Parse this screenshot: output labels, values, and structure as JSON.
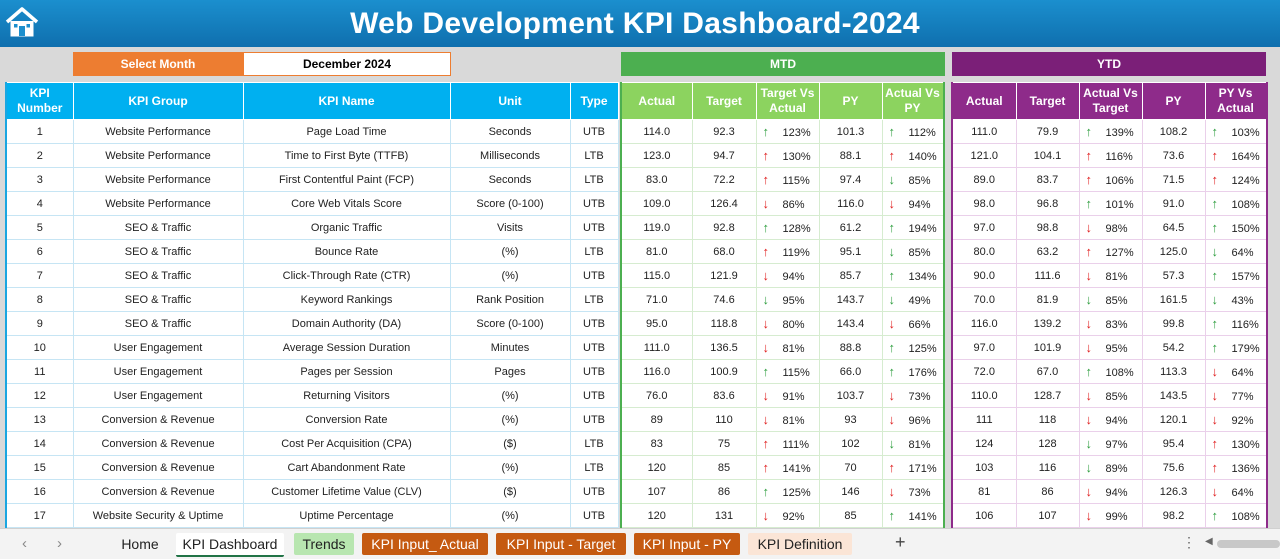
{
  "title": "Web Development KPI Dashboard-2024",
  "select_month_label": "Select Month",
  "selected_month": "December 2024",
  "sections": {
    "mtd": "MTD",
    "ytd": "YTD"
  },
  "headers": {
    "kpi_number": "KPI Number",
    "kpi_group": "KPI Group",
    "kpi_name": "KPI Name",
    "unit": "Unit",
    "type": "Type",
    "mtd_actual": "Actual",
    "mtd_target": "Target",
    "mtd_tvsa": "Target Vs Actual",
    "mtd_py": "PY",
    "mtd_avspy": "Actual Vs PY",
    "ytd_actual": "Actual",
    "ytd_target": "Target",
    "ytd_avst": "Actual Vs Target",
    "ytd_py": "PY",
    "ytd_pyvsa": "PY Vs Actual"
  },
  "colors": {
    "title_bar": "#1b8fce",
    "select_month": "#ed7d31",
    "mtd": "#4caf50",
    "mtd_header": "#8cd35f",
    "ytd": "#7b1f78",
    "up_arrow": "#2e9e3e",
    "down_arrow": "#e02020"
  },
  "rows": [
    {
      "num": "1",
      "group": "Website Performance",
      "name": "Page Load Time",
      "unit": "Seconds",
      "type": "UTB",
      "mA": "114.0",
      "mT": "92.3",
      "mC": {
        "dir": "up",
        "v": "123%"
      },
      "mPY": "101.3",
      "mP": {
        "dir": "up",
        "v": "112%"
      },
      "yA": "111.0",
      "yT": "79.9",
      "yC": {
        "dir": "up",
        "v": "139%"
      },
      "yPY": "108.2",
      "yP": {
        "dir": "up",
        "v": "103%"
      }
    },
    {
      "num": "2",
      "group": "Website Performance",
      "name": "Time to First Byte (TTFB)",
      "unit": "Milliseconds",
      "type": "LTB",
      "mA": "123.0",
      "mT": "94.7",
      "mC": {
        "dir": "up-red",
        "v": "130%"
      },
      "mPY": "88.1",
      "mP": {
        "dir": "up-red",
        "v": "140%"
      },
      "yA": "121.0",
      "yT": "104.1",
      "yC": {
        "dir": "up-red",
        "v": "116%"
      },
      "yPY": "73.6",
      "yP": {
        "dir": "up-red",
        "v": "164%"
      }
    },
    {
      "num": "3",
      "group": "Website Performance",
      "name": "First Contentful Paint (FCP)",
      "unit": "Seconds",
      "type": "LTB",
      "mA": "83.0",
      "mT": "72.2",
      "mC": {
        "dir": "up-red",
        "v": "115%"
      },
      "mPY": "97.4",
      "mP": {
        "dir": "down-green",
        "v": "85%"
      },
      "yA": "89.0",
      "yT": "83.7",
      "yC": {
        "dir": "up-red",
        "v": "106%"
      },
      "yPY": "71.5",
      "yP": {
        "dir": "up-red",
        "v": "124%"
      }
    },
    {
      "num": "4",
      "group": "Website Performance",
      "name": "Core Web Vitals Score",
      "unit": "Score (0-100)",
      "type": "UTB",
      "mA": "109.0",
      "mT": "126.4",
      "mC": {
        "dir": "down",
        "v": "86%"
      },
      "mPY": "116.0",
      "mP": {
        "dir": "down",
        "v": "94%"
      },
      "yA": "98.0",
      "yT": "96.8",
      "yC": {
        "dir": "up",
        "v": "101%"
      },
      "yPY": "91.0",
      "yP": {
        "dir": "up",
        "v": "108%"
      }
    },
    {
      "num": "5",
      "group": "SEO & Traffic",
      "name": "Organic Traffic",
      "unit": "Visits",
      "type": "UTB",
      "mA": "119.0",
      "mT": "92.8",
      "mC": {
        "dir": "up",
        "v": "128%"
      },
      "mPY": "61.2",
      "mP": {
        "dir": "up",
        "v": "194%"
      },
      "yA": "97.0",
      "yT": "98.8",
      "yC": {
        "dir": "down",
        "v": "98%"
      },
      "yPY": "64.5",
      "yP": {
        "dir": "up",
        "v": "150%"
      }
    },
    {
      "num": "6",
      "group": "SEO & Traffic",
      "name": "Bounce Rate",
      "unit": "(%)",
      "type": "LTB",
      "mA": "81.0",
      "mT": "68.0",
      "mC": {
        "dir": "up-red",
        "v": "119%"
      },
      "mPY": "95.1",
      "mP": {
        "dir": "down-green",
        "v": "85%"
      },
      "yA": "80.0",
      "yT": "63.2",
      "yC": {
        "dir": "up-red",
        "v": "127%"
      },
      "yPY": "125.0",
      "yP": {
        "dir": "down-green",
        "v": "64%"
      }
    },
    {
      "num": "7",
      "group": "SEO & Traffic",
      "name": "Click-Through Rate (CTR)",
      "unit": "(%)",
      "type": "UTB",
      "mA": "115.0",
      "mT": "121.9",
      "mC": {
        "dir": "down",
        "v": "94%"
      },
      "mPY": "85.7",
      "mP": {
        "dir": "up",
        "v": "134%"
      },
      "yA": "90.0",
      "yT": "111.6",
      "yC": {
        "dir": "down",
        "v": "81%"
      },
      "yPY": "57.3",
      "yP": {
        "dir": "up",
        "v": "157%"
      }
    },
    {
      "num": "8",
      "group": "SEO & Traffic",
      "name": "Keyword Rankings",
      "unit": "Rank Position",
      "type": "LTB",
      "mA": "71.0",
      "mT": "74.6",
      "mC": {
        "dir": "down-green",
        "v": "95%"
      },
      "mPY": "143.7",
      "mP": {
        "dir": "down-green",
        "v": "49%"
      },
      "yA": "70.0",
      "yT": "81.9",
      "yC": {
        "dir": "down-green",
        "v": "85%"
      },
      "yPY": "161.5",
      "yP": {
        "dir": "down-green",
        "v": "43%"
      }
    },
    {
      "num": "9",
      "group": "SEO & Traffic",
      "name": "Domain Authority (DA)",
      "unit": "Score (0-100)",
      "type": "UTB",
      "mA": "95.0",
      "mT": "118.8",
      "mC": {
        "dir": "down",
        "v": "80%"
      },
      "mPY": "143.4",
      "mP": {
        "dir": "down",
        "v": "66%"
      },
      "yA": "116.0",
      "yT": "139.2",
      "yC": {
        "dir": "down",
        "v": "83%"
      },
      "yPY": "99.8",
      "yP": {
        "dir": "up",
        "v": "116%"
      }
    },
    {
      "num": "10",
      "group": "User Engagement",
      "name": "Average Session Duration",
      "unit": "Minutes",
      "type": "UTB",
      "mA": "111.0",
      "mT": "136.5",
      "mC": {
        "dir": "down",
        "v": "81%"
      },
      "mPY": "88.8",
      "mP": {
        "dir": "up",
        "v": "125%"
      },
      "yA": "97.0",
      "yT": "101.9",
      "yC": {
        "dir": "down",
        "v": "95%"
      },
      "yPY": "54.2",
      "yP": {
        "dir": "up",
        "v": "179%"
      }
    },
    {
      "num": "11",
      "group": "User Engagement",
      "name": "Pages per Session",
      "unit": "Pages",
      "type": "UTB",
      "mA": "116.0",
      "mT": "100.9",
      "mC": {
        "dir": "up",
        "v": "115%"
      },
      "mPY": "66.0",
      "mP": {
        "dir": "up",
        "v": "176%"
      },
      "yA": "72.0",
      "yT": "67.0",
      "yC": {
        "dir": "up",
        "v": "108%"
      },
      "yPY": "113.3",
      "yP": {
        "dir": "down",
        "v": "64%"
      }
    },
    {
      "num": "12",
      "group": "User Engagement",
      "name": "Returning Visitors",
      "unit": "(%)",
      "type": "UTB",
      "mA": "76.0",
      "mT": "83.6",
      "mC": {
        "dir": "down",
        "v": "91%"
      },
      "mPY": "103.7",
      "mP": {
        "dir": "down",
        "v": "73%"
      },
      "yA": "110.0",
      "yT": "128.7",
      "yC": {
        "dir": "down",
        "v": "85%"
      },
      "yPY": "143.5",
      "yP": {
        "dir": "down",
        "v": "77%"
      }
    },
    {
      "num": "13",
      "group": "Conversion & Revenue",
      "name": "Conversion Rate",
      "unit": "(%)",
      "type": "UTB",
      "mA": "89",
      "mT": "110",
      "mC": {
        "dir": "down",
        "v": "81%"
      },
      "mPY": "93",
      "mP": {
        "dir": "down",
        "v": "96%"
      },
      "yA": "111",
      "yT": "118",
      "yC": {
        "dir": "down",
        "v": "94%"
      },
      "yPY": "120.1",
      "yP": {
        "dir": "down",
        "v": "92%"
      }
    },
    {
      "num": "14",
      "group": "Conversion & Revenue",
      "name": "Cost Per Acquisition (CPA)",
      "unit": "($)",
      "type": "LTB",
      "mA": "83",
      "mT": "75",
      "mC": {
        "dir": "up-red",
        "v": "111%"
      },
      "mPY": "102",
      "mP": {
        "dir": "down-green",
        "v": "81%"
      },
      "yA": "124",
      "yT": "128",
      "yC": {
        "dir": "down-green",
        "v": "97%"
      },
      "yPY": "95.4",
      "yP": {
        "dir": "up-red",
        "v": "130%"
      }
    },
    {
      "num": "15",
      "group": "Conversion & Revenue",
      "name": "Cart Abandonment Rate",
      "unit": "(%)",
      "type": "LTB",
      "mA": "120",
      "mT": "85",
      "mC": {
        "dir": "up-red",
        "v": "141%"
      },
      "mPY": "70",
      "mP": {
        "dir": "up-red",
        "v": "171%"
      },
      "yA": "103",
      "yT": "116",
      "yC": {
        "dir": "down-green",
        "v": "89%"
      },
      "yPY": "75.6",
      "yP": {
        "dir": "up-red",
        "v": "136%"
      }
    },
    {
      "num": "16",
      "group": "Conversion & Revenue",
      "name": "Customer Lifetime Value (CLV)",
      "unit": "($)",
      "type": "UTB",
      "mA": "107",
      "mT": "86",
      "mC": {
        "dir": "up",
        "v": "125%"
      },
      "mPY": "146",
      "mP": {
        "dir": "down",
        "v": "73%"
      },
      "yA": "81",
      "yT": "86",
      "yC": {
        "dir": "down",
        "v": "94%"
      },
      "yPY": "126.3",
      "yP": {
        "dir": "down",
        "v": "64%"
      }
    },
    {
      "num": "17",
      "group": "Website Security & Uptime",
      "name": "Uptime Percentage",
      "unit": "(%)",
      "type": "UTB",
      "mA": "120",
      "mT": "131",
      "mC": {
        "dir": "down",
        "v": "92%"
      },
      "mPY": "85",
      "mP": {
        "dir": "up",
        "v": "141%"
      },
      "yA": "106",
      "yT": "107",
      "yC": {
        "dir": "down",
        "v": "99%"
      },
      "yPY": "98.2",
      "yP": {
        "dir": "up",
        "v": "108%"
      }
    }
  ],
  "sheet_tabs": [
    {
      "key": "home",
      "label": "Home"
    },
    {
      "key": "kpi",
      "label": "KPI Dashboard"
    },
    {
      "key": "trends",
      "label": "Trends"
    },
    {
      "key": "ia",
      "label": "KPI Input_ Actual"
    },
    {
      "key": "it",
      "label": "KPI Input - Target"
    },
    {
      "key": "ip",
      "label": "KPI Input - PY"
    },
    {
      "key": "def",
      "label": "KPI Definition"
    }
  ],
  "tab_bar": {
    "add_sheet": "+",
    "more": "⋮",
    "prev": "‹",
    "next": "›"
  }
}
